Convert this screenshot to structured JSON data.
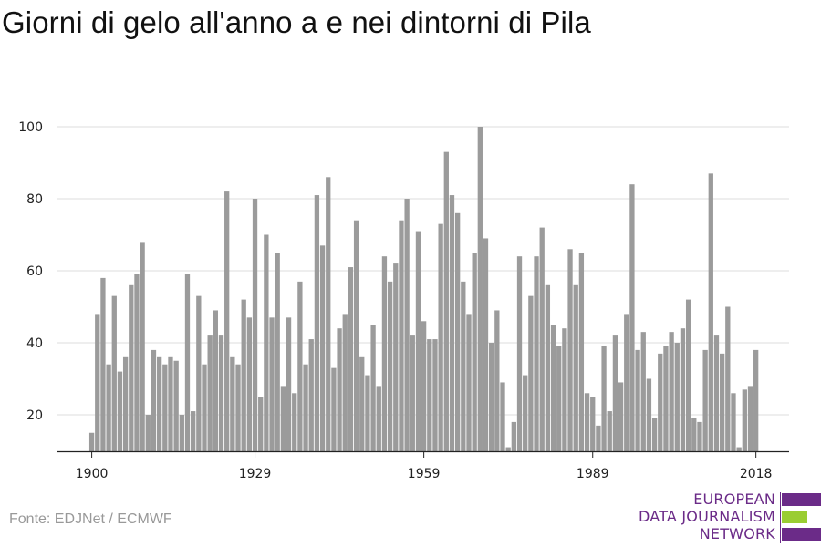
{
  "title": "Giorni di gelo all'anno a e nei dintorni di Pila",
  "source": "Fonte: EDJNet / ECMWF",
  "logo": {
    "lines": [
      "EUROPEAN",
      "DATA JOURNALISM",
      "NETWORK"
    ],
    "colors": {
      "purple": "#6b2b88",
      "green": "#9acd32"
    }
  },
  "colors": {
    "bar": "#9b9b9b",
    "grid": "#dddddd",
    "axis": "#222222"
  },
  "chart_data": {
    "type": "bar",
    "title": "Giorni di gelo all'anno a e nei dintorni di Pila",
    "xlabel": "",
    "ylabel": "",
    "x_start": 1900,
    "x_ticks": [
      1900,
      1929,
      1959,
      1989,
      2018
    ],
    "y_ticks": [
      20,
      40,
      60,
      80,
      100
    ],
    "ylim": [
      10,
      100
    ],
    "grid": true,
    "values": [
      15,
      48,
      58,
      34,
      53,
      32,
      36,
      56,
      59,
      68,
      20,
      38,
      36,
      34,
      36,
      35,
      20,
      59,
      21,
      53,
      34,
      42,
      49,
      42,
      82,
      36,
      34,
      52,
      47,
      80,
      25,
      70,
      47,
      65,
      28,
      47,
      26,
      57,
      34,
      41,
      81,
      67,
      86,
      33,
      44,
      48,
      61,
      74,
      36,
      31,
      45,
      28,
      64,
      57,
      62,
      74,
      80,
      42,
      71,
      46,
      41,
      41,
      73,
      93,
      81,
      76,
      57,
      48,
      65,
      100,
      69,
      40,
      49,
      29,
      11,
      18,
      64,
      31,
      53,
      64,
      72,
      56,
      45,
      39,
      44,
      66,
      56,
      65,
      26,
      25,
      17,
      39,
      21,
      42,
      29,
      48,
      84,
      38,
      43,
      30,
      19,
      37,
      39,
      43,
      40,
      44,
      52,
      19,
      18,
      38,
      87,
      42,
      37,
      50,
      26,
      11,
      27,
      28,
      38
    ]
  }
}
